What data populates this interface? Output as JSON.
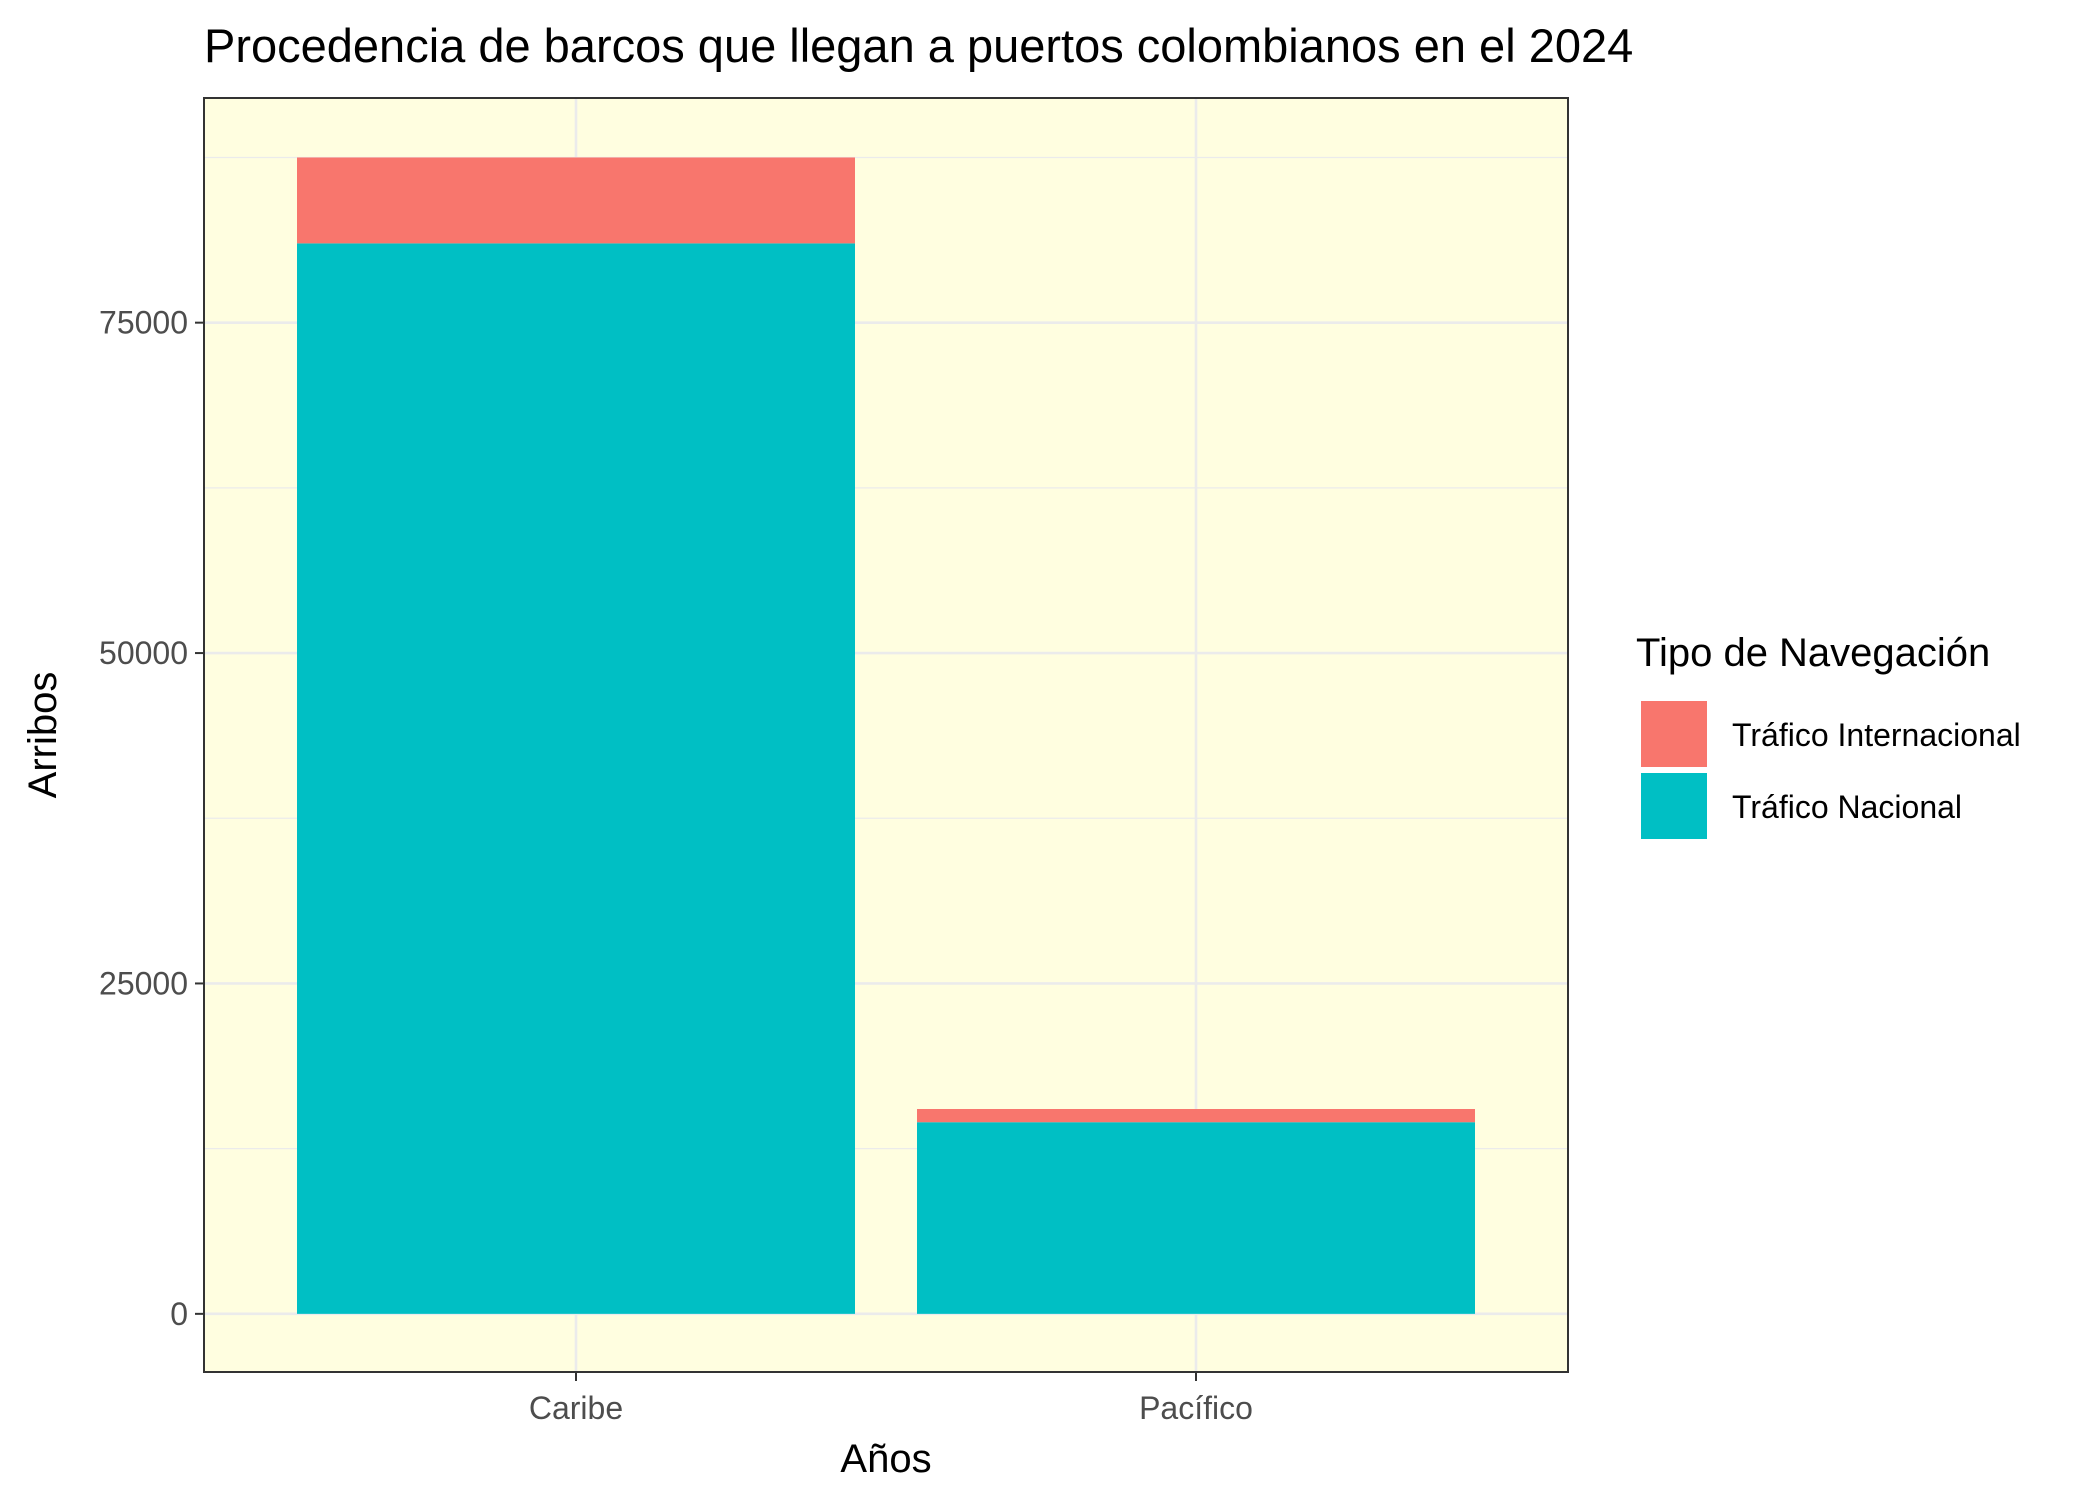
{
  "chart_data": {
    "type": "bar",
    "stacked": true,
    "title": "Procedencia de barcos que llegan a puertos colombianos en el 2024",
    "xlabel": "Años",
    "ylabel": "Arribos",
    "categories": [
      "Caribe",
      "Pacífico"
    ],
    "series": [
      {
        "name": "Tráfico Internacional",
        "color": "#F8766D",
        "values": [
          6500,
          1000
        ]
      },
      {
        "name": "Tráfico Nacional",
        "color": "#00BFC4",
        "values": [
          81000,
          14500
        ]
      }
    ],
    "ylim": [
      -4400,
      92000
    ],
    "yticks": [
      0,
      25000,
      50000,
      75000
    ],
    "ytick_labels": [
      "0",
      "25000",
      "50000",
      "75000"
    ],
    "legend": {
      "title": "Tipo de Navegación",
      "position": "right"
    },
    "panel_background": "#FFFEE0",
    "grid": true
  }
}
